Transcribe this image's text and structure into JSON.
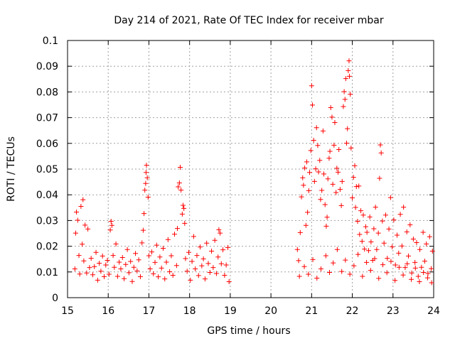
{
  "chart_data": {
    "type": "scatter",
    "title": "Day 214 of 2021, Rate Of TEC Index for receiver mbar",
    "xlabel": "GPS time / hours",
    "ylabel": "ROTI / TECUs",
    "xlim": [
      15,
      24
    ],
    "ylim": [
      0,
      0.1
    ],
    "x_ticks": [
      15,
      16,
      17,
      18,
      19,
      20,
      21,
      22,
      23,
      24
    ],
    "x_tick_labels": [
      "15",
      "16",
      "17",
      "18",
      "19",
      "20",
      "21",
      "22",
      "23",
      "24"
    ],
    "y_ticks": [
      0,
      0.01,
      0.02,
      0.03,
      0.04,
      0.05,
      0.06,
      0.07,
      0.08,
      0.09,
      0.1
    ],
    "y_tick_labels": [
      "0",
      "0.01",
      "0.02",
      "0.03",
      "0.04",
      "0.05",
      "0.06",
      "0.07",
      "0.08",
      "0.09",
      "0.1"
    ],
    "grid": true,
    "marker": "plus",
    "marker_color": "#ff0000",
    "series": [
      {
        "name": "ROTI",
        "color": "#ff0000",
        "points": [
          [
            15.18,
            0.0112
          ],
          [
            15.2,
            0.0251
          ],
          [
            15.22,
            0.0333
          ],
          [
            15.25,
            0.0301
          ],
          [
            15.28,
            0.0164
          ],
          [
            15.3,
            0.0092
          ],
          [
            15.33,
            0.0355
          ],
          [
            15.36,
            0.0208
          ],
          [
            15.38,
            0.0381
          ],
          [
            15.4,
            0.0143
          ],
          [
            15.43,
            0.0282
          ],
          [
            15.47,
            0.0096
          ],
          [
            15.5,
            0.0267
          ],
          [
            15.54,
            0.0117
          ],
          [
            15.58,
            0.0153
          ],
          [
            15.62,
            0.0089
          ],
          [
            15.66,
            0.0121
          ],
          [
            15.7,
            0.0176
          ],
          [
            15.74,
            0.0068
          ],
          [
            15.78,
            0.0134
          ],
          [
            15.82,
            0.0103
          ],
          [
            15.86,
            0.0162
          ],
          [
            15.9,
            0.0082
          ],
          [
            15.94,
            0.0127
          ],
          [
            15.98,
            0.0145
          ],
          [
            16.02,
            0.0091
          ],
          [
            16.05,
            0.0263
          ],
          [
            16.07,
            0.0297
          ],
          [
            16.09,
            0.0281
          ],
          [
            16.12,
            0.0164
          ],
          [
            16.15,
            0.0118
          ],
          [
            16.19,
            0.0209
          ],
          [
            16.23,
            0.0083
          ],
          [
            16.27,
            0.0138
          ],
          [
            16.31,
            0.0112
          ],
          [
            16.35,
            0.0156
          ],
          [
            16.39,
            0.0074
          ],
          [
            16.43,
            0.0129
          ],
          [
            16.47,
            0.0187
          ],
          [
            16.51,
            0.0097
          ],
          [
            16.55,
            0.0141
          ],
          [
            16.59,
            0.0063
          ],
          [
            16.63,
            0.0118
          ],
          [
            16.67,
            0.0172
          ],
          [
            16.71,
            0.0104
          ],
          [
            16.75,
            0.0147
          ],
          [
            16.79,
            0.0082
          ],
          [
            16.83,
            0.0213
          ],
          [
            16.86,
            0.0262
          ],
          [
            16.88,
            0.0327
          ],
          [
            16.9,
            0.0418
          ],
          [
            16.92,
            0.0444
          ],
          [
            16.93,
            0.0487
          ],
          [
            16.94,
            0.0515
          ],
          [
            16.96,
            0.0466
          ],
          [
            16.98,
            0.0391
          ],
          [
            17.0,
            0.0163
          ],
          [
            17.03,
            0.0112
          ],
          [
            17.07,
            0.0178
          ],
          [
            17.11,
            0.0093
          ],
          [
            17.15,
            0.0137
          ],
          [
            17.19,
            0.0204
          ],
          [
            17.23,
            0.0081
          ],
          [
            17.27,
            0.0158
          ],
          [
            17.31,
            0.0115
          ],
          [
            17.35,
            0.0192
          ],
          [
            17.39,
            0.0073
          ],
          [
            17.43,
            0.0138
          ],
          [
            17.47,
            0.0226
          ],
          [
            17.51,
            0.0101
          ],
          [
            17.55,
            0.0163
          ],
          [
            17.59,
            0.0087
          ],
          [
            17.63,
            0.0247
          ],
          [
            17.68,
            0.0125
          ],
          [
            17.7,
            0.0269
          ],
          [
            17.72,
            0.0431
          ],
          [
            17.75,
            0.0446
          ],
          [
            17.77,
            0.0507
          ],
          [
            17.79,
            0.0418
          ],
          [
            17.82,
            0.0325
          ],
          [
            17.84,
            0.0359
          ],
          [
            17.86,
            0.0347
          ],
          [
            17.88,
            0.0289
          ],
          [
            17.9,
            0.0152
          ],
          [
            17.94,
            0.0103
          ],
          [
            17.98,
            0.0176
          ],
          [
            18.02,
            0.0068
          ],
          [
            18.06,
            0.0141
          ],
          [
            18.1,
            0.0238
          ],
          [
            18.14,
            0.0112
          ],
          [
            18.18,
            0.0164
          ],
          [
            18.22,
            0.0086
          ],
          [
            18.26,
            0.0197
          ],
          [
            18.3,
            0.0124
          ],
          [
            18.34,
            0.0151
          ],
          [
            18.38,
            0.0073
          ],
          [
            18.42,
            0.0212
          ],
          [
            18.46,
            0.0133
          ],
          [
            18.5,
            0.0098
          ],
          [
            18.54,
            0.0181
          ],
          [
            18.58,
            0.0117
          ],
          [
            18.62,
            0.0223
          ],
          [
            18.66,
            0.0094
          ],
          [
            18.7,
            0.0158
          ],
          [
            18.72,
            0.0264
          ],
          [
            18.75,
            0.0251
          ],
          [
            18.78,
            0.0132
          ],
          [
            18.82,
            0.0186
          ],
          [
            18.86,
            0.0087
          ],
          [
            18.9,
            0.0127
          ],
          [
            18.94,
            0.0195
          ],
          [
            18.97,
            0.0062
          ],
          [
            20.65,
            0.0187
          ],
          [
            20.68,
            0.0144
          ],
          [
            20.72,
            0.0253
          ],
          [
            20.75,
            0.0392
          ],
          [
            20.78,
            0.0466
          ],
          [
            20.8,
            0.0437
          ],
          [
            20.83,
            0.0504
          ],
          [
            20.86,
            0.0281
          ],
          [
            20.88,
            0.0528
          ],
          [
            20.9,
            0.0332
          ],
          [
            20.93,
            0.0416
          ],
          [
            20.95,
            0.0487
          ],
          [
            20.98,
            0.0572
          ],
          [
            21.0,
            0.0824
          ],
          [
            21.02,
            0.0749
          ],
          [
            21.05,
            0.0612
          ],
          [
            21.07,
            0.0452
          ],
          [
            21.1,
            0.0501
          ],
          [
            21.12,
            0.0661
          ],
          [
            21.15,
            0.0592
          ],
          [
            21.17,
            0.0489
          ],
          [
            21.2,
            0.0534
          ],
          [
            21.22,
            0.0382
          ],
          [
            21.25,
            0.0417
          ],
          [
            21.28,
            0.0648
          ],
          [
            21.3,
            0.0481
          ],
          [
            21.33,
            0.0362
          ],
          [
            21.36,
            0.0278
          ],
          [
            21.38,
            0.0313
          ],
          [
            21.4,
            0.0462
          ],
          [
            21.43,
            0.0542
          ],
          [
            21.45,
            0.0569
          ],
          [
            21.47,
            0.0739
          ],
          [
            21.5,
            0.0702
          ],
          [
            21.52,
            0.0441
          ],
          [
            21.55,
            0.0593
          ],
          [
            21.57,
            0.0681
          ],
          [
            21.6,
            0.0409
          ],
          [
            21.62,
            0.0503
          ],
          [
            21.65,
            0.0488
          ],
          [
            21.67,
            0.0576
          ],
          [
            21.7,
            0.0421
          ],
          [
            21.73,
            0.0358
          ],
          [
            21.75,
            0.0452
          ],
          [
            21.78,
            0.0743
          ],
          [
            21.8,
            0.0801
          ],
          [
            21.82,
            0.0771
          ],
          [
            21.84,
            0.0852
          ],
          [
            21.86,
            0.0601
          ],
          [
            21.88,
            0.0657
          ],
          [
            21.9,
            0.0883
          ],
          [
            21.92,
            0.0921
          ],
          [
            21.93,
            0.0861
          ],
          [
            21.95,
            0.0791
          ],
          [
            21.97,
            0.0582
          ],
          [
            22.0,
            0.0388
          ],
          [
            22.03,
            0.0468
          ],
          [
            22.06,
            0.0513
          ],
          [
            22.08,
            0.0351
          ],
          [
            22.1,
            0.0432
          ],
          [
            22.13,
            0.0297
          ],
          [
            22.16,
            0.0434
          ],
          [
            22.18,
            0.0246
          ],
          [
            22.21,
            0.0338
          ],
          [
            22.24,
            0.0219
          ],
          [
            22.27,
            0.0321
          ],
          [
            22.3,
            0.0189
          ],
          [
            22.33,
            0.0276
          ],
          [
            22.36,
            0.0254
          ],
          [
            22.4,
            0.0183
          ],
          [
            22.43,
            0.0314
          ],
          [
            22.46,
            0.0217
          ],
          [
            22.5,
            0.0145
          ],
          [
            22.53,
            0.0268
          ],
          [
            22.57,
            0.0352
          ],
          [
            22.6,
            0.0187
          ],
          [
            22.64,
            0.0251
          ],
          [
            22.67,
            0.0464
          ],
          [
            22.69,
            0.0594
          ],
          [
            22.71,
            0.0563
          ],
          [
            22.74,
            0.0298
          ],
          [
            22.78,
            0.0212
          ],
          [
            22.82,
            0.0321
          ],
          [
            22.86,
            0.0153
          ],
          [
            22.9,
            0.0267
          ],
          [
            22.94,
            0.0389
          ],
          [
            22.98,
            0.0198
          ],
          [
            23.02,
            0.0302
          ],
          [
            23.06,
            0.0127
          ],
          [
            23.1,
            0.0243
          ],
          [
            23.14,
            0.0173
          ],
          [
            23.18,
            0.0324
          ],
          [
            23.22,
            0.0201
          ],
          [
            23.26,
            0.0352
          ],
          [
            23.3,
            0.0117
          ],
          [
            23.34,
            0.0256
          ],
          [
            23.38,
            0.0162
          ],
          [
            23.42,
            0.0283
          ],
          [
            23.46,
            0.0096
          ],
          [
            23.5,
            0.0228
          ],
          [
            23.54,
            0.0137
          ],
          [
            23.58,
            0.0214
          ],
          [
            23.62,
            0.0083
          ],
          [
            23.66,
            0.0187
          ],
          [
            23.7,
            0.0118
          ],
          [
            23.74,
            0.0254
          ],
          [
            23.78,
            0.0142
          ],
          [
            23.82,
            0.0209
          ],
          [
            23.86,
            0.0094
          ],
          [
            23.9,
            0.0237
          ],
          [
            23.94,
            0.0113
          ],
          [
            23.97,
            0.0181
          ],
          [
            20.7,
            0.0083
          ],
          [
            20.82,
            0.0121
          ],
          [
            20.92,
            0.0091
          ],
          [
            21.03,
            0.0148
          ],
          [
            21.13,
            0.0076
          ],
          [
            21.23,
            0.0112
          ],
          [
            21.35,
            0.0163
          ],
          [
            21.44,
            0.0098
          ],
          [
            21.53,
            0.0135
          ],
          [
            21.63,
            0.0187
          ],
          [
            21.74,
            0.0102
          ],
          [
            21.83,
            0.0146
          ],
          [
            21.94,
            0.0091
          ],
          [
            22.04,
            0.0124
          ],
          [
            22.14,
            0.0168
          ],
          [
            22.25,
            0.0083
          ],
          [
            22.35,
            0.0137
          ],
          [
            22.45,
            0.0106
          ],
          [
            22.55,
            0.0152
          ],
          [
            22.65,
            0.0075
          ],
          [
            22.75,
            0.0128
          ],
          [
            22.85,
            0.0097
          ],
          [
            22.95,
            0.0141
          ],
          [
            23.05,
            0.0067
          ],
          [
            23.15,
            0.0118
          ],
          [
            23.25,
            0.0088
          ],
          [
            23.35,
            0.0132
          ],
          [
            23.45,
            0.0071
          ],
          [
            23.55,
            0.0115
          ],
          [
            23.65,
            0.0062
          ],
          [
            23.75,
            0.0098
          ],
          [
            23.85,
            0.0077
          ],
          [
            23.95,
            0.0058
          ]
        ]
      }
    ]
  }
}
